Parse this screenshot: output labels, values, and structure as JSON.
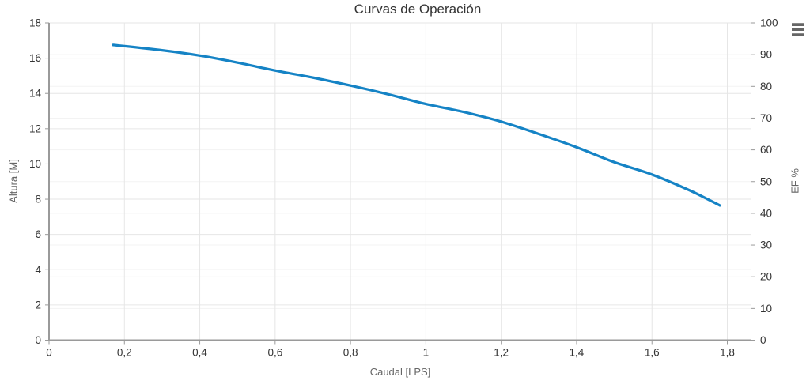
{
  "header": {
    "title": "Curvas de Operación"
  },
  "toolbar": {
    "context_menu_icon": "hamburger-menu"
  },
  "colors": {
    "background": "#ffffff",
    "series_line": "#1583c5",
    "grid_major": "#e6e6e6",
    "grid_faint": "#f3f3f3",
    "axis_line": "#9a9a9a",
    "tick_mark": "#9a9a9a",
    "tick_label": "#333333",
    "axis_title": "#666666",
    "title": "#333333"
  },
  "chart_data": {
    "type": "line",
    "title": "Curvas de Operación",
    "xlabel": "Caudal [LPS]",
    "ylabel_left": "Altura [M]",
    "ylabel_right": "EF %",
    "decimal_separator": ",",
    "legend": "none",
    "grid": "on",
    "axes": {
      "x": {
        "label": "Caudal [LPS]",
        "min": 0,
        "max": 1.864,
        "tick_values": [
          0,
          0.2,
          0.4,
          0.6,
          0.8,
          1.0,
          1.2,
          1.4,
          1.6,
          1.8
        ],
        "tick_labels": [
          "0",
          "0,2",
          "0,4",
          "0,6",
          "0,8",
          "1",
          "1,2",
          "1,4",
          "1,6",
          "1,8"
        ]
      },
      "y_left": {
        "label": "Altura [M]",
        "min": 0,
        "max": 18,
        "tick_interval": 2,
        "tick_values": [
          0,
          2,
          4,
          6,
          8,
          10,
          12,
          14,
          16,
          18
        ],
        "tick_labels": [
          "0",
          "2",
          "4",
          "6",
          "8",
          "10",
          "12",
          "14",
          "16",
          "18"
        ]
      },
      "y_right": {
        "label": "EF %",
        "min": 0,
        "max": 100,
        "tick_interval": 10,
        "tick_values": [
          0,
          10,
          20,
          30,
          40,
          50,
          60,
          70,
          80,
          90,
          100
        ],
        "tick_labels": [
          "0",
          "10",
          "20",
          "30",
          "40",
          "50",
          "60",
          "70",
          "80",
          "90",
          "100"
        ]
      }
    },
    "series": [
      {
        "name": "Altura",
        "yaxis": "left",
        "color": "#1583c5",
        "line_width": 3.25,
        "points": [
          [
            0.17,
            16.75
          ],
          [
            0.3,
            16.45
          ],
          [
            0.4,
            16.15
          ],
          [
            0.5,
            15.75
          ],
          [
            0.6,
            15.3
          ],
          [
            0.7,
            14.9
          ],
          [
            0.8,
            14.45
          ],
          [
            0.9,
            13.95
          ],
          [
            1.0,
            13.4
          ],
          [
            1.1,
            12.95
          ],
          [
            1.2,
            12.4
          ],
          [
            1.3,
            11.7
          ],
          [
            1.4,
            10.95
          ],
          [
            1.5,
            10.1
          ],
          [
            1.6,
            9.4
          ],
          [
            1.7,
            8.5
          ],
          [
            1.78,
            7.65
          ]
        ]
      }
    ]
  }
}
